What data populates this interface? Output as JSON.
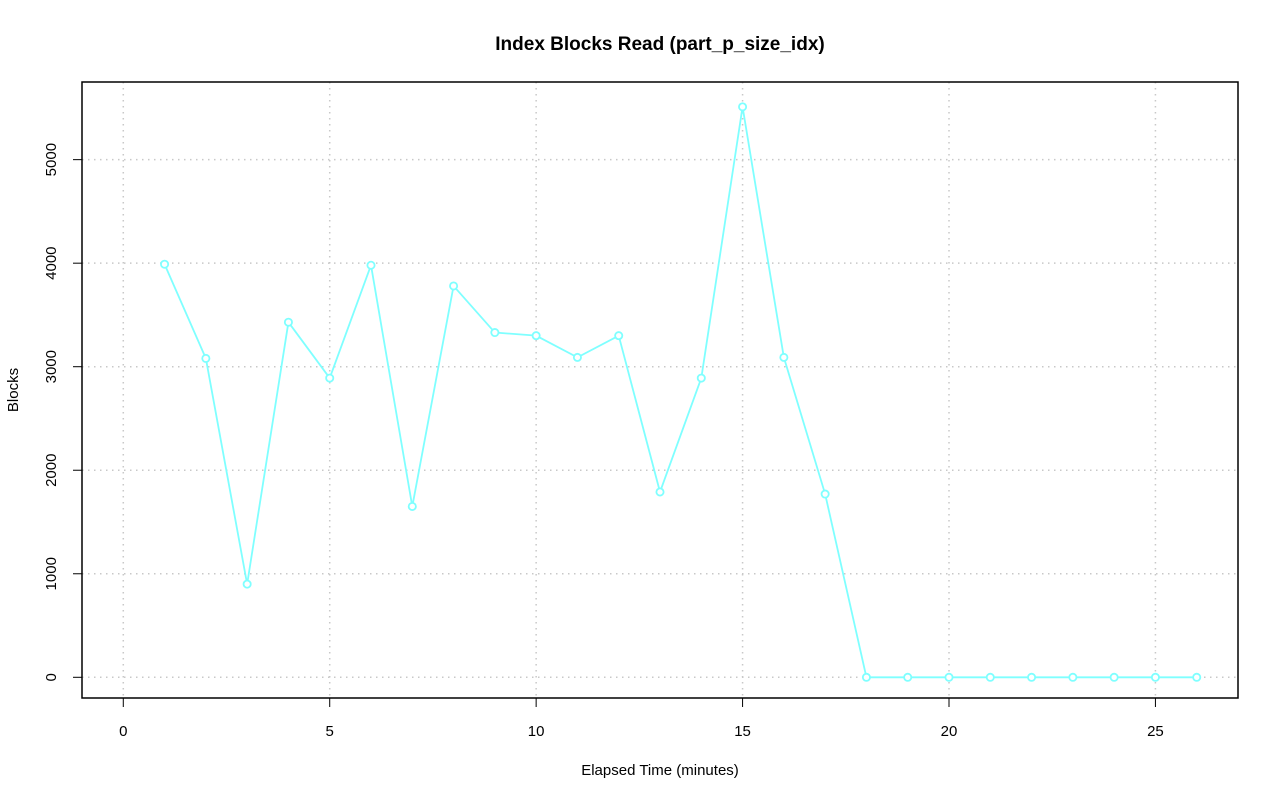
{
  "chart_data": {
    "type": "line",
    "title": "Index Blocks Read (part_p_size_idx)",
    "xlabel": "Elapsed Time (minutes)",
    "ylabel": "Blocks",
    "xlim": [
      -1,
      27
    ],
    "ylim": [
      -200,
      5750
    ],
    "x_ticks": [
      0,
      5,
      10,
      15,
      20,
      25
    ],
    "y_ticks": [
      0,
      1000,
      2000,
      3000,
      4000,
      5000
    ],
    "grid": true,
    "series": [
      {
        "color": "#7fffff",
        "x": [
          1,
          2,
          3,
          4,
          5,
          6,
          7,
          8,
          9,
          10,
          11,
          12,
          13,
          14,
          15,
          16,
          17,
          18,
          19,
          20,
          21,
          22,
          23,
          24,
          25,
          26
        ],
        "values": [
          3990,
          3080,
          900,
          3430,
          2890,
          3980,
          1650,
          3780,
          3330,
          3300,
          3090,
          3300,
          1790,
          2890,
          5510,
          3090,
          1770,
          0,
          0,
          0,
          0,
          0,
          0,
          0,
          0,
          0
        ]
      }
    ]
  }
}
